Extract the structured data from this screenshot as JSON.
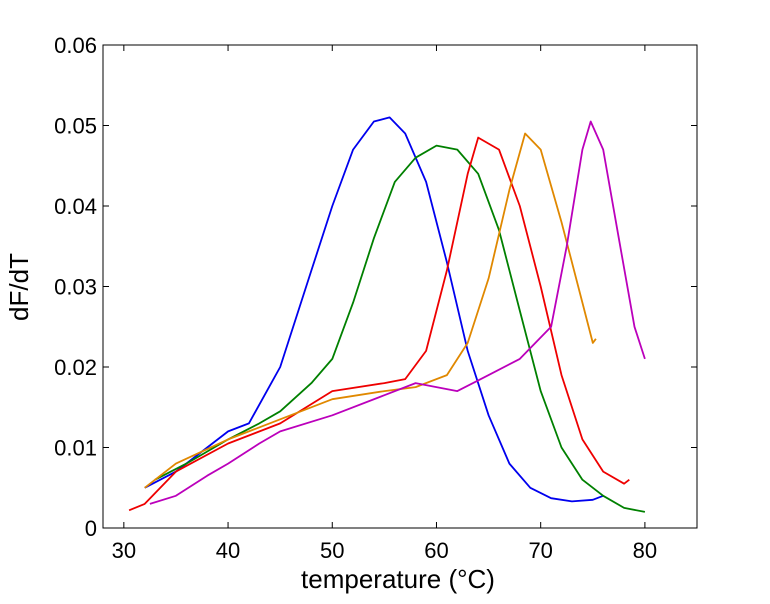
{
  "chart_data": {
    "type": "line",
    "xlabel": "temperature (°C)",
    "ylabel": "dF/dT",
    "xlim": [
      28,
      85
    ],
    "ylim": [
      0,
      0.06
    ],
    "xticks": [
      30,
      40,
      50,
      60,
      70,
      80
    ],
    "yticks": [
      0,
      0.01,
      0.02,
      0.03,
      0.04,
      0.05,
      0.06
    ],
    "series": [
      {
        "color": "#0000ee",
        "x": [
          32,
          35,
          40,
          42,
          45,
          48,
          50,
          52,
          54,
          55.5,
          57,
          59,
          61,
          63,
          65,
          67,
          69,
          71,
          73,
          75,
          76
        ],
        "values": [
          0.005,
          0.007,
          0.012,
          0.013,
          0.02,
          0.032,
          0.04,
          0.047,
          0.0505,
          0.051,
          0.049,
          0.043,
          0.033,
          0.022,
          0.014,
          0.008,
          0.005,
          0.0037,
          0.0033,
          0.0035,
          0.004
        ]
      },
      {
        "color": "#008000",
        "x": [
          33,
          36,
          40,
          43,
          45,
          48,
          50,
          52,
          54,
          56,
          58,
          60,
          62,
          64,
          66,
          68,
          70,
          72,
          74,
          76,
          78,
          80
        ],
        "values": [
          0.006,
          0.008,
          0.011,
          0.013,
          0.0145,
          0.018,
          0.021,
          0.028,
          0.036,
          0.043,
          0.046,
          0.0475,
          0.047,
          0.044,
          0.037,
          0.027,
          0.017,
          0.01,
          0.006,
          0.004,
          0.0025,
          0.002
        ]
      },
      {
        "color": "#ee0000",
        "x": [
          30.5,
          32,
          35,
          40,
          45,
          50,
          55,
          57,
          59,
          61,
          63,
          64,
          66,
          68,
          70,
          72,
          74,
          76,
          78,
          78.5
        ],
        "values": [
          0.0022,
          0.003,
          0.007,
          0.0105,
          0.013,
          0.017,
          0.018,
          0.0185,
          0.022,
          0.032,
          0.044,
          0.0485,
          0.047,
          0.04,
          0.03,
          0.019,
          0.011,
          0.007,
          0.0055,
          0.006
        ]
      },
      {
        "color": "#e08800",
        "x": [
          32,
          35,
          40,
          45,
          50,
          55,
          58,
          61,
          63,
          65,
          67,
          68.5,
          70,
          72,
          74,
          75,
          75.3
        ],
        "values": [
          0.005,
          0.008,
          0.011,
          0.0135,
          0.016,
          0.017,
          0.0175,
          0.019,
          0.023,
          0.031,
          0.042,
          0.049,
          0.047,
          0.038,
          0.028,
          0.023,
          0.0235
        ]
      },
      {
        "color": "#bb00bb",
        "x": [
          32.5,
          35,
          38,
          40,
          43,
          45,
          50,
          55,
          58,
          62,
          65,
          68,
          71,
          72.5,
          74,
          74.8,
          76,
          77.5,
          79,
          80
        ],
        "values": [
          0.003,
          0.004,
          0.0065,
          0.008,
          0.0105,
          0.012,
          0.014,
          0.0165,
          0.018,
          0.017,
          0.019,
          0.021,
          0.025,
          0.035,
          0.047,
          0.0505,
          0.047,
          0.036,
          0.025,
          0.021
        ]
      }
    ]
  }
}
